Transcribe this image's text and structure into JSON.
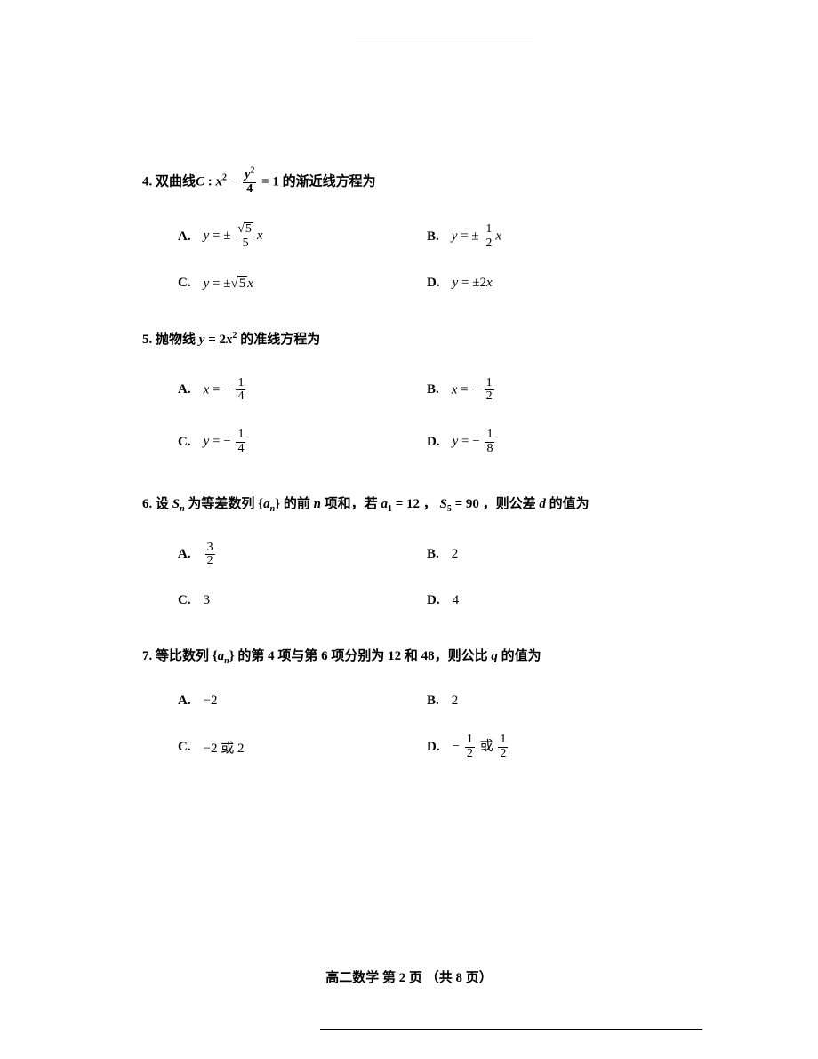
{
  "questions": [
    {
      "number": "4.",
      "stem_prefix": "双曲线",
      "stem_formula_html": "<span class='italic'>C</span> : <span class='italic'>x</span><sup>2</sup> − <span class='frac'><span class='num'><span class='italic'>y</span><sup>2</sup></span><span class='den'>4</span></span> = 1",
      "stem_suffix": " 的渐近线方程为",
      "options": [
        {
          "label": "A.",
          "html": "<span class='italic'>y</span> = ± <span class='frac'><span class='num'><span class='radical'>√</span><span class='sqrt'>5</span></span><span class='den'>5</span></span><span class='italic'>x</span>"
        },
        {
          "label": "B.",
          "html": "<span class='italic'>y</span> = ± <span class='frac'><span class='num'>1</span><span class='den'>2</span></span><span class='italic'>x</span>"
        },
        {
          "label": "C.",
          "html": "<span class='italic'>y</span> = ±<span class='radical'>√</span><span class='sqrt'>5</span><span class='italic'>x</span>"
        },
        {
          "label": "D.",
          "html": "<span class='italic'>y</span> = ±2<span class='italic'>x</span>"
        }
      ]
    },
    {
      "number": "5.",
      "stem_prefix": "抛物线 ",
      "stem_formula_html": "<span class='italic'>y</span> = 2<span class='italic'>x</span><sup>2</sup>",
      "stem_suffix": " 的准线方程为",
      "options": [
        {
          "label": "A.",
          "html": "<span class='italic'>x</span> = − <span class='frac'><span class='num'>1</span><span class='den'>4</span></span>"
        },
        {
          "label": "B.",
          "html": "<span class='italic'>x</span> = − <span class='frac'><span class='num'>1</span><span class='den'>2</span></span>"
        },
        {
          "label": "C.",
          "html": "<span class='italic'>y</span> = − <span class='frac'><span class='num'>1</span><span class='den'>4</span></span>"
        },
        {
          "label": "D.",
          "html": "<span class='italic'>y</span> = − <span class='frac'><span class='num'>1</span><span class='den'>8</span></span>"
        }
      ]
    },
    {
      "number": "6.",
      "stem_prefix": "设 ",
      "stem_formula_html": "<span class='italic'>S<sub>n</sub></span> 为等差数列 {<span class='italic'>a<sub>n</sub></span>} 的前 <span class='italic'>n</span> 项和，若 <span class='italic'>a</span><sub>1</sub> = 12 ， <span class='italic'>S</span><sub>5</sub> = 90 ，则公差 <span class='italic'>d</span> 的值为",
      "stem_suffix": "",
      "options": [
        {
          "label": "A.",
          "html": "<span class='frac'><span class='num'>3</span><span class='den'>2</span></span>"
        },
        {
          "label": "B.",
          "html": "2"
        },
        {
          "label": "C.",
          "html": "3"
        },
        {
          "label": "D.",
          "html": "4"
        }
      ]
    },
    {
      "number": "7.",
      "stem_prefix": "等比数列 ",
      "stem_formula_html": "{<span class='italic'>a<sub>n</sub></span>} 的第 4 项与第 6 项分别为 12 和 48，则公比 <span class='italic'>q</span> 的值为",
      "stem_suffix": "",
      "options": [
        {
          "label": "A.",
          "html": "−2"
        },
        {
          "label": "B.",
          "html": "2"
        },
        {
          "label": "C.",
          "html": "−2 或 2"
        },
        {
          "label": "D.",
          "html": "− <span class='frac'><span class='num'>1</span><span class='den'>2</span></span> 或 <span class='frac'><span class='num'>1</span><span class='den'>2</span></span>"
        }
      ]
    }
  ],
  "footer": "高二数学  第 2 页  （共 8 页）"
}
